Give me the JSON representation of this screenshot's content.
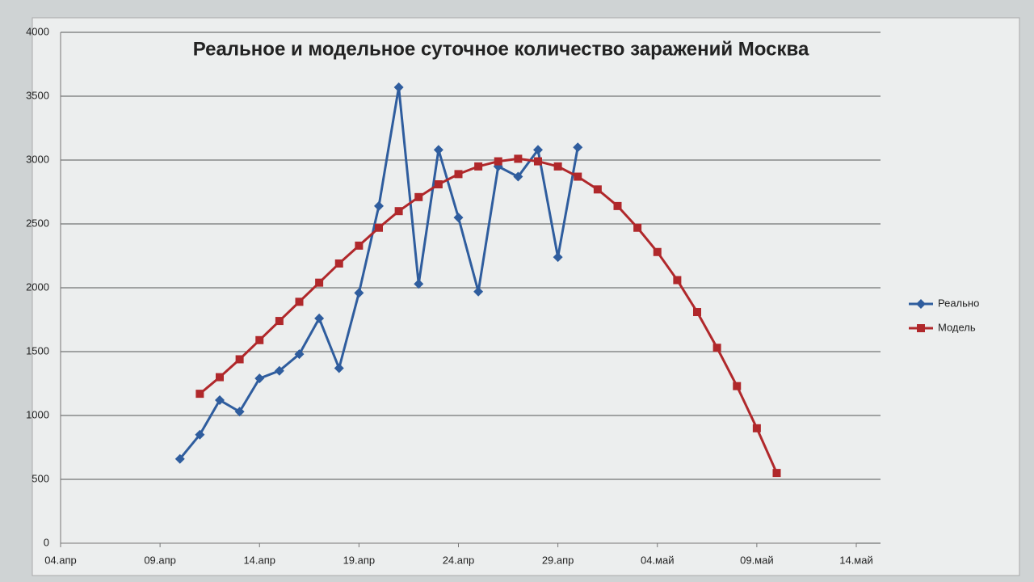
{
  "chart_data": {
    "type": "line",
    "title": "Реальное и модельное суточное количество заражений Москва",
    "xlim": [
      "04-04",
      "05-14"
    ],
    "xticks": [
      {
        "value": "04-04",
        "label": "04.апр"
      },
      {
        "value": "04-09",
        "label": "09.апр"
      },
      {
        "value": "04-14",
        "label": "14.апр"
      },
      {
        "value": "04-19",
        "label": "19.апр"
      },
      {
        "value": "04-24",
        "label": "24.апр"
      },
      {
        "value": "04-29",
        "label": "29.апр"
      },
      {
        "value": "05-04",
        "label": "04.май"
      },
      {
        "value": "05-09",
        "label": "09.май"
      },
      {
        "value": "05-14",
        "label": "14.май"
      }
    ],
    "ylim": [
      0,
      4000
    ],
    "yticks": [
      0,
      500,
      1000,
      1500,
      2000,
      2500,
      3000,
      3500,
      4000
    ],
    "grid": true,
    "legend": "right",
    "series": [
      {
        "name": "Реально",
        "color": "#2f5d9e",
        "marker": "diamond",
        "x": [
          "04-10",
          "04-11",
          "04-12",
          "04-13",
          "04-14",
          "04-15",
          "04-16",
          "04-17",
          "04-18",
          "04-19",
          "04-20",
          "04-21",
          "04-22",
          "04-23",
          "04-24",
          "04-25",
          "04-26",
          "04-27",
          "04-28",
          "04-29",
          "04-30"
        ],
        "values": [
          660,
          850,
          1120,
          1030,
          1290,
          1350,
          1480,
          1760,
          1370,
          1960,
          2640,
          3570,
          2030,
          3080,
          2550,
          1970,
          2950,
          2870,
          3080,
          2240,
          3100
        ]
      },
      {
        "name": "Модель",
        "color": "#b0282b",
        "marker": "square",
        "x": [
          "04-11",
          "04-12",
          "04-13",
          "04-14",
          "04-15",
          "04-16",
          "04-17",
          "04-18",
          "04-19",
          "04-20",
          "04-21",
          "04-22",
          "04-23",
          "04-24",
          "04-25",
          "04-26",
          "04-27",
          "04-28",
          "04-29",
          "04-30",
          "05-01",
          "05-02",
          "05-03",
          "05-04",
          "05-05",
          "05-06",
          "05-07",
          "05-08",
          "05-09",
          "05-10"
        ],
        "values": [
          1170,
          1300,
          1440,
          1590,
          1740,
          1890,
          2040,
          2190,
          2330,
          2470,
          2600,
          2710,
          2810,
          2890,
          2950,
          2990,
          3010,
          2990,
          2950,
          2870,
          2770,
          2640,
          2470,
          2280,
          2060,
          1810,
          1530,
          1230,
          900,
          550
        ]
      }
    ]
  }
}
